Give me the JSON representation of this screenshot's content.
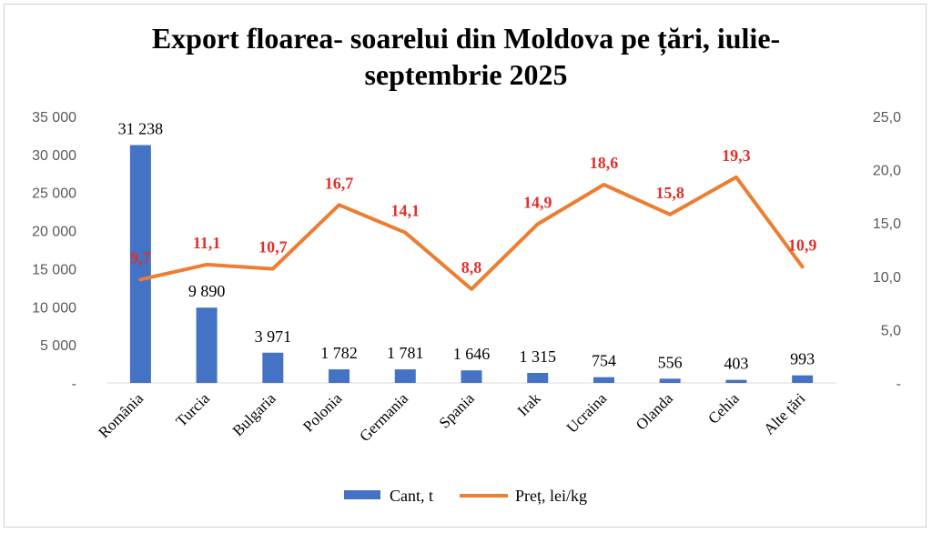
{
  "chart_data": {
    "type": "bar",
    "title": "Export floarea- soarelui din Moldova pe țări, iulie-septembrie 2025",
    "title_lines": [
      "Export floarea- soarelui din Moldova pe țări, iulie-",
      "septembrie 2025"
    ],
    "categories": [
      "România",
      "Turcia",
      "Bulgaria",
      "Polonia",
      "Germania",
      "Spania",
      "Irak",
      "Ucraina",
      "Olanda",
      "Cehia",
      "Alte țări"
    ],
    "series": [
      {
        "name": "Cant, t",
        "type": "bar",
        "axis": "left",
        "color": "#4472c4",
        "values": [
          31238,
          9890,
          3971,
          1782,
          1781,
          1646,
          1315,
          754,
          556,
          403,
          993
        ],
        "labels": [
          "31 238",
          "9 890",
          "3 971",
          "1 782",
          "1 781",
          "1 646",
          "1 315",
          "754",
          "556",
          "403",
          "993"
        ]
      },
      {
        "name": "Preț, lei/kg",
        "type": "line",
        "axis": "right",
        "color": "#ed7d31",
        "label_color": "#e0302b",
        "values": [
          9.7,
          11.1,
          10.7,
          16.7,
          14.1,
          8.8,
          14.9,
          18.6,
          15.8,
          19.3,
          10.9
        ],
        "labels": [
          "9,7",
          "11,1",
          "10,7",
          "16,7",
          "14,1",
          "8,8",
          "14,9",
          "18,6",
          "15,8",
          "19,3",
          "10,9"
        ]
      }
    ],
    "y_left": {
      "lim": [
        0,
        35000
      ],
      "ticks": [
        0,
        5000,
        10000,
        15000,
        20000,
        25000,
        30000,
        35000
      ],
      "tick_labels": [
        "-",
        "5 000",
        "10 000",
        "15 000",
        "20 000",
        "25 000",
        "30 000",
        "35 000"
      ]
    },
    "y_right": {
      "lim": [
        0,
        25
      ],
      "ticks": [
        0,
        5,
        10,
        15,
        20,
        25
      ],
      "tick_labels": [
        "-",
        "5,0",
        "10,0",
        "15,0",
        "20,0",
        "25,0"
      ]
    },
    "grid": false,
    "legend": "bottom"
  }
}
